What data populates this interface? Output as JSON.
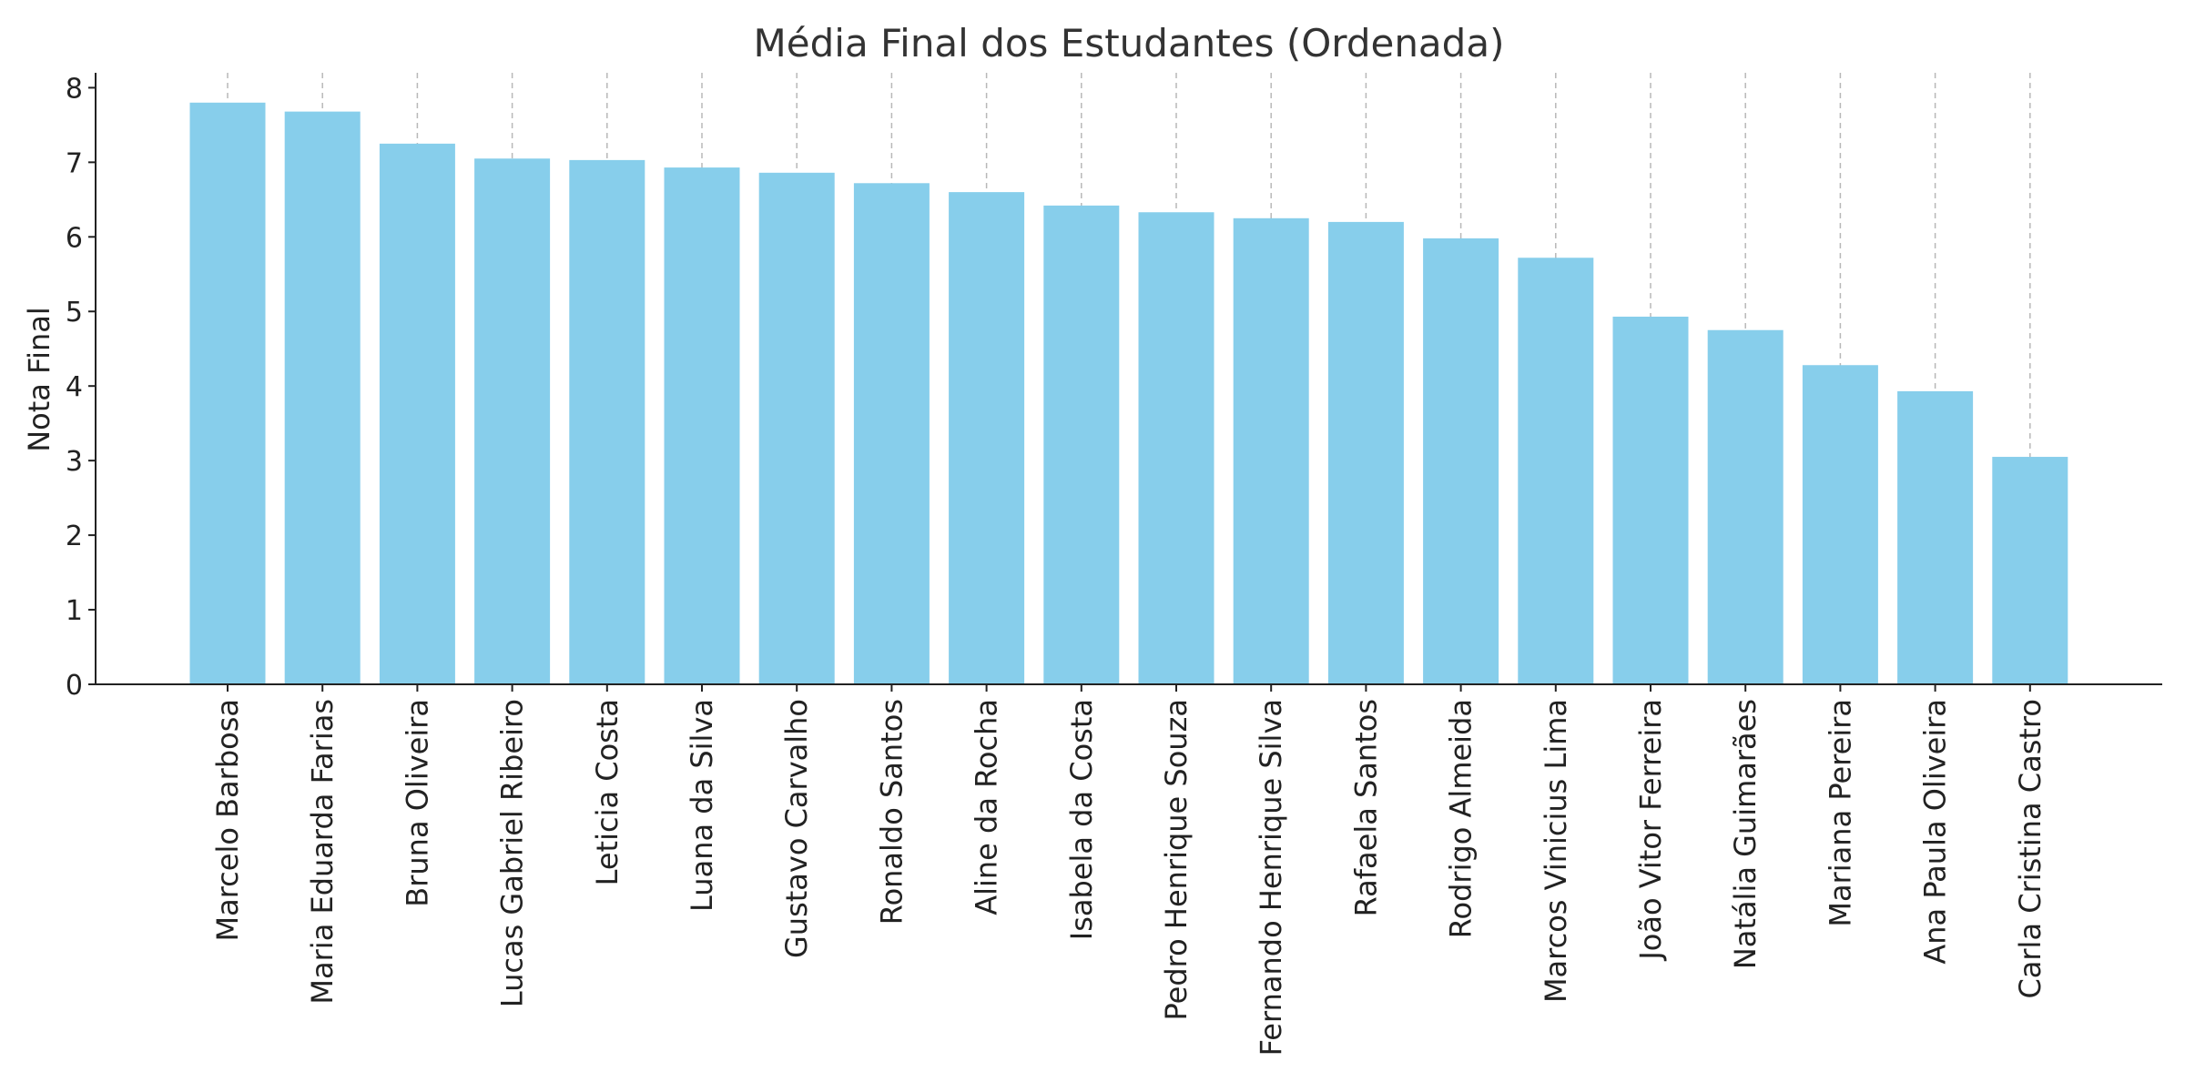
{
  "chart_data": {
    "type": "bar",
    "title": "Média Final dos Estudantes (Ordenada)",
    "xlabel": "",
    "ylabel": "Nota Final",
    "ylim": [
      0,
      8.2
    ],
    "yticks": [
      0,
      1,
      2,
      3,
      4,
      5,
      6,
      7,
      8
    ],
    "grid": "vertical-dashed",
    "bar_color": "#87CEEB",
    "categories": [
      "Marcelo Barbosa",
      "Maria Eduarda Farias",
      "Bruna Oliveira",
      "Lucas Gabriel Ribeiro",
      "Leticia Costa",
      "Luana da Silva",
      "Gustavo Carvalho",
      "Ronaldo Santos",
      "Aline da Rocha",
      "Isabela da Costa",
      "Pedro Henrique Souza",
      "Fernando Henrique Silva",
      "Rafaela Santos",
      "Rodrigo Almeida",
      "Marcos Vinicius Lima",
      "João Vitor Ferreira",
      "Natália Guimarães",
      "Mariana Pereira",
      "Ana Paula Oliveira",
      "Carla Cristina Castro"
    ],
    "values": [
      7.8,
      7.68,
      7.25,
      7.05,
      7.03,
      6.93,
      6.86,
      6.72,
      6.6,
      6.42,
      6.33,
      6.25,
      6.2,
      5.98,
      5.72,
      4.93,
      4.75,
      4.28,
      3.93,
      3.05
    ]
  }
}
